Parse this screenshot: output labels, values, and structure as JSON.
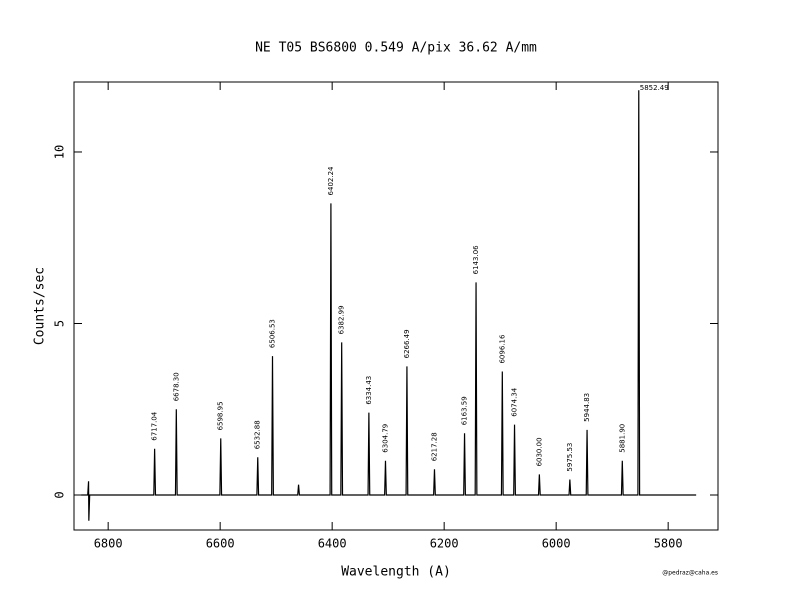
{
  "chart_data": {
    "type": "line",
    "title": "NE  T05  BS6800  0.549 A/pix 36.62 A/mm",
    "xlabel": "Wavelength (A)",
    "ylabel": "Counts/sec",
    "credit": "@pedraz@caha.es",
    "xlim": [
      6861,
      5711
    ],
    "ylim": [
      -1.02,
      12.04
    ],
    "xticks": [
      6800,
      6600,
      6400,
      6200,
      6000,
      5800
    ],
    "yticks": [
      0,
      5,
      10
    ],
    "series": [
      {
        "color": "#000000",
        "x": [
          6848,
          6836.5,
          6835,
          6834.5,
          6833,
          6718.5,
          6717.04,
          6715.5,
          6679.8,
          6678.3,
          6676.8,
          6600.5,
          6598.95,
          6597.5,
          6534.4,
          6532.88,
          6531.4,
          6508,
          6506.53,
          6505,
          6461.5,
          6460,
          6458.5,
          6403.7,
          6402.24,
          6400.8,
          6384.5,
          6382.99,
          6381.5,
          6335.9,
          6334.43,
          6332.9,
          6306.3,
          6304.79,
          6303.3,
          6268,
          6266.49,
          6265,
          6218.8,
          6217.28,
          6215.8,
          6165.1,
          6163.59,
          6162.1,
          6144.6,
          6143.06,
          6141.6,
          6097.7,
          6096.16,
          6094.7,
          6075.8,
          6074.34,
          6072.8,
          6031.5,
          6030,
          6028.5,
          5977,
          5975.53,
          5974,
          5946.3,
          5944.83,
          5943.3,
          5883.4,
          5881.9,
          5880.4,
          5854,
          5852.49,
          5851,
          5750
        ],
        "values": [
          0,
          0,
          0.4,
          -0.75,
          0,
          0,
          1.35,
          0,
          0,
          2.5,
          0,
          0,
          1.65,
          0,
          0,
          1.1,
          0,
          0,
          4.05,
          0,
          0,
          0.3,
          0,
          0,
          8.5,
          0,
          0,
          4.45,
          0,
          0,
          2.4,
          0,
          0,
          1.0,
          0,
          0,
          3.75,
          0,
          0,
          0.75,
          0,
          0,
          1.8,
          0,
          0,
          6.2,
          0,
          0,
          3.6,
          0,
          0,
          2.05,
          0,
          0,
          0.6,
          0,
          0,
          0.45,
          0,
          0,
          1.9,
          0,
          0,
          1.0,
          0,
          0,
          11.8,
          0,
          0
        ]
      }
    ],
    "annotations": [
      {
        "label": "6717.04",
        "x": 6717.04
      },
      {
        "label": "6678.30",
        "x": 6678.3
      },
      {
        "label": "6598.95",
        "x": 6598.95
      },
      {
        "label": "6532.88",
        "x": 6532.88
      },
      {
        "label": "6506.53",
        "x": 6506.53
      },
      {
        "label": "6402.24",
        "x": 6402.24
      },
      {
        "label": "6382.99",
        "x": 6382.99
      },
      {
        "label": "6334.43",
        "x": 6334.43
      },
      {
        "label": "6304.79",
        "x": 6304.79
      },
      {
        "label": "6266.49",
        "x": 6266.49
      },
      {
        "label": "6217.28",
        "x": 6217.28
      },
      {
        "label": "6163.59",
        "x": 6163.59
      },
      {
        "label": "6143.06",
        "x": 6143.06
      },
      {
        "label": "6096.16",
        "x": 6096.16
      },
      {
        "label": "6074.34",
        "x": 6074.34
      },
      {
        "label": "6030.00",
        "x": 6030
      },
      {
        "label": "5975.53",
        "x": 5975.53
      },
      {
        "label": "5944.83",
        "x": 5944.83
      },
      {
        "label": "5881.90",
        "x": 5881.9
      },
      {
        "label": "5852.49",
        "x": 5852.49
      }
    ]
  }
}
